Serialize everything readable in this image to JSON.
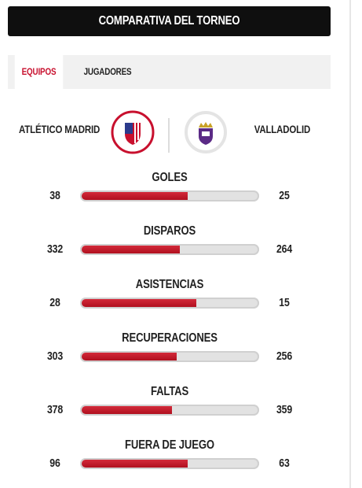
{
  "header": {
    "title": "COMPARATIVA DEL TORNEO"
  },
  "tabs": [
    "EQUIPOS",
    "JUGADORES"
  ],
  "teams": {
    "home": "ATLÉTICO MADRID",
    "away": "VALLADOLID"
  },
  "stats": [
    {
      "label": "GOLES",
      "left": 38,
      "right": 25
    },
    {
      "label": "DISPAROS",
      "left": 332,
      "right": 264
    },
    {
      "label": "ASISTENCIAS",
      "left": 28,
      "right": 15
    },
    {
      "label": "RECUPERACIONES",
      "left": 303,
      "right": 256
    },
    {
      "label": "FALTAS",
      "left": 378,
      "right": 359
    },
    {
      "label": "FUERA DE JUEGO",
      "left": 96,
      "right": 63
    }
  ]
}
